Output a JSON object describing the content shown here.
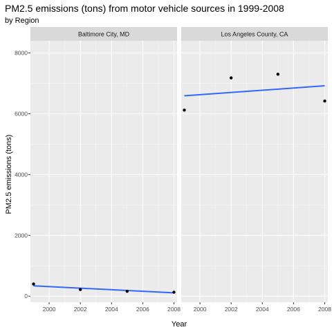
{
  "chart_data": {
    "type": "scatter",
    "title": "PM2.5 emissions (tons) from motor vehicle sources in 1999-2008",
    "subtitle": "by Region",
    "xlabel": "Year",
    "ylabel": "PM2.5 emissions (tons)",
    "xlim": [
      1998.8,
      2008.2
    ],
    "ylim": [
      -200,
      8400
    ],
    "x_ticks": [
      2000,
      2002,
      2004,
      2006,
      2008
    ],
    "y_ticks": [
      0,
      2000,
      4000,
      6000,
      8000
    ],
    "grid": true,
    "panel_background": "#ebebeb",
    "strip_background": "#d9d9d9",
    "point_color": "#000000",
    "smooth_color": "#3366ff",
    "panels": [
      {
        "label": "Baltimore City, MD",
        "x": [
          1999,
          2002,
          2005,
          2008
        ],
        "y": [
          400,
          220,
          160,
          130
        ],
        "trend": {
          "x": [
            1999,
            2008
          ],
          "y": [
            340,
            110
          ]
        }
      },
      {
        "label": "Los Angeles County, CA",
        "x": [
          1999,
          2002,
          2005,
          2008
        ],
        "y": [
          6120,
          7180,
          7300,
          6420
        ],
        "trend": {
          "x": [
            1999,
            2008
          ],
          "y": [
            6590,
            6920
          ]
        }
      }
    ]
  }
}
